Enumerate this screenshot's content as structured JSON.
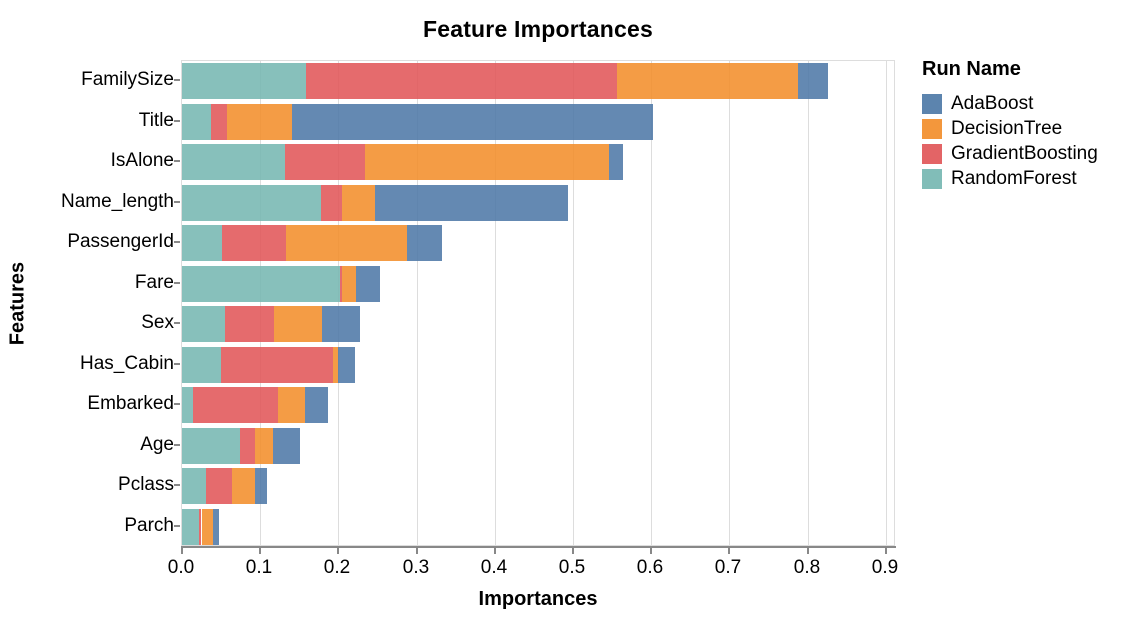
{
  "title": "Feature Importances",
  "x_axis": {
    "label": "Importances",
    "tick_labels": [
      "0.0",
      "0.1",
      "0.2",
      "0.3",
      "0.4",
      "0.5",
      "0.6",
      "0.7",
      "0.8",
      "0.9"
    ],
    "tick_values": [
      0.0,
      0.1,
      0.2,
      0.3,
      0.4,
      0.5,
      0.6,
      0.7,
      0.8,
      0.9
    ]
  },
  "y_axis": {
    "label": "Features"
  },
  "legend": {
    "title": "Run Name",
    "entries": [
      {
        "label": "AdaBoost",
        "color": "#4e79a7"
      },
      {
        "label": "DecisionTree",
        "color": "#f28e2b"
      },
      {
        "label": "GradientBoosting",
        "color": "#e15759"
      },
      {
        "label": "RandomForest",
        "color": "#76b7b2"
      }
    ]
  },
  "chart_data": {
    "type": "bar",
    "orientation": "horizontal",
    "stacked": true,
    "title": "Feature Importances",
    "xlabel": "Importances",
    "ylabel": "Features",
    "xlim": [
      0,
      0.913
    ],
    "grid": true,
    "legend_position": "right",
    "legend_title": "Run Name",
    "categories": [
      "FamilySize",
      "Title",
      "IsAlone",
      "Name_length",
      "PassengerId",
      "Fare",
      "Sex",
      "Has_Cabin",
      "Embarked",
      "Age",
      "Pclass",
      "Parch"
    ],
    "stack_order_left_to_right": [
      "RandomForest",
      "GradientBoosting",
      "DecisionTree",
      "AdaBoost"
    ],
    "series": [
      {
        "name": "RandomForest",
        "color": "#76b7b2",
        "values": [
          0.158,
          0.037,
          0.132,
          0.178,
          0.051,
          0.202,
          0.055,
          0.05,
          0.014,
          0.074,
          0.03,
          0.022
        ]
      },
      {
        "name": "GradientBoosting",
        "color": "#e15759",
        "values": [
          0.398,
          0.021,
          0.102,
          0.027,
          0.082,
          0.003,
          0.063,
          0.143,
          0.109,
          0.019,
          0.034,
          0.003
        ]
      },
      {
        "name": "DecisionTree",
        "color": "#f28e2b",
        "values": [
          0.232,
          0.083,
          0.312,
          0.042,
          0.155,
          0.017,
          0.061,
          0.007,
          0.034,
          0.023,
          0.029,
          0.015
        ]
      },
      {
        "name": "AdaBoost",
        "color": "#4e79a7",
        "values": [
          0.038,
          0.461,
          0.018,
          0.247,
          0.045,
          0.031,
          0.048,
          0.021,
          0.03,
          0.035,
          0.016,
          0.007
        ]
      }
    ],
    "totals": [
      0.826,
      0.602,
      0.564,
      0.494,
      0.333,
      0.253,
      0.227,
      0.221,
      0.187,
      0.151,
      0.109,
      0.047
    ]
  }
}
